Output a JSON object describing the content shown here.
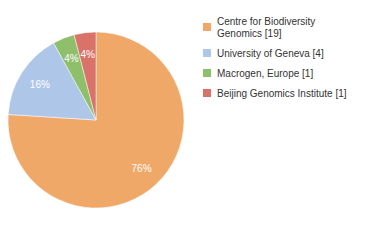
{
  "chart_data": {
    "type": "pie",
    "categories": [
      "Centre for Biodiversity\nGenomics [19]",
      "University of Geneva [4]",
      "Macrogen, Europe [1]",
      "Beijing Genomics Institute [1]"
    ],
    "values": [
      76,
      16,
      4,
      4
    ],
    "value_labels": [
      "76%",
      "16%",
      "4%",
      "4%"
    ],
    "colors": [
      "#f0a868",
      "#aec6e8",
      "#8fbf6a",
      "#d9736a"
    ],
    "data_labels": true,
    "legend": "upper right"
  }
}
